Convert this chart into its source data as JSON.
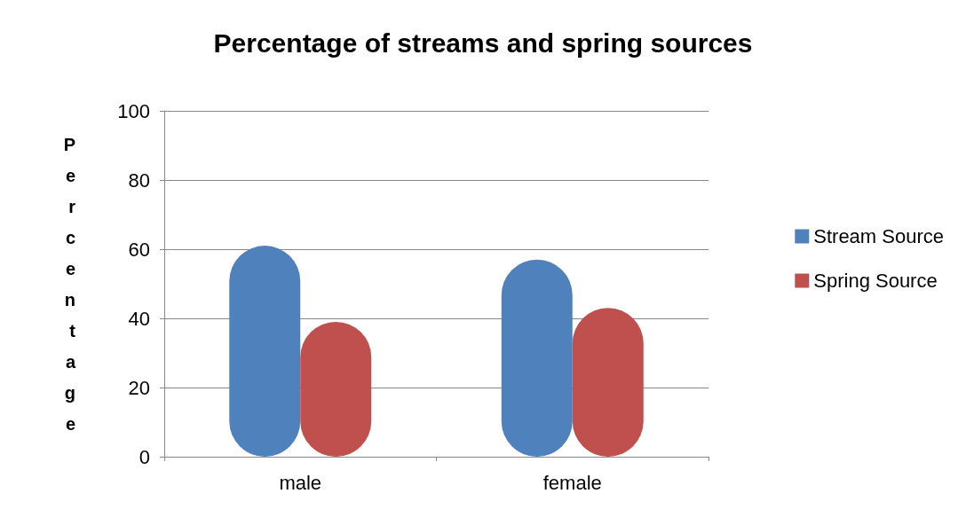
{
  "chart_data": {
    "type": "bar",
    "title": "Percentage of streams and spring sources",
    "ylabel": "Percentage",
    "categories": [
      "male",
      "female"
    ],
    "series": [
      {
        "name": "Stream Source",
        "color": "#4f81bd",
        "values": [
          61,
          57
        ]
      },
      {
        "name": "Spring Source",
        "color": "#c0504d",
        "values": [
          39,
          43
        ]
      }
    ],
    "ylim": [
      0,
      100
    ],
    "yticks": [
      0,
      20,
      40,
      60,
      80,
      100
    ],
    "grid": "y",
    "legend": "right"
  }
}
